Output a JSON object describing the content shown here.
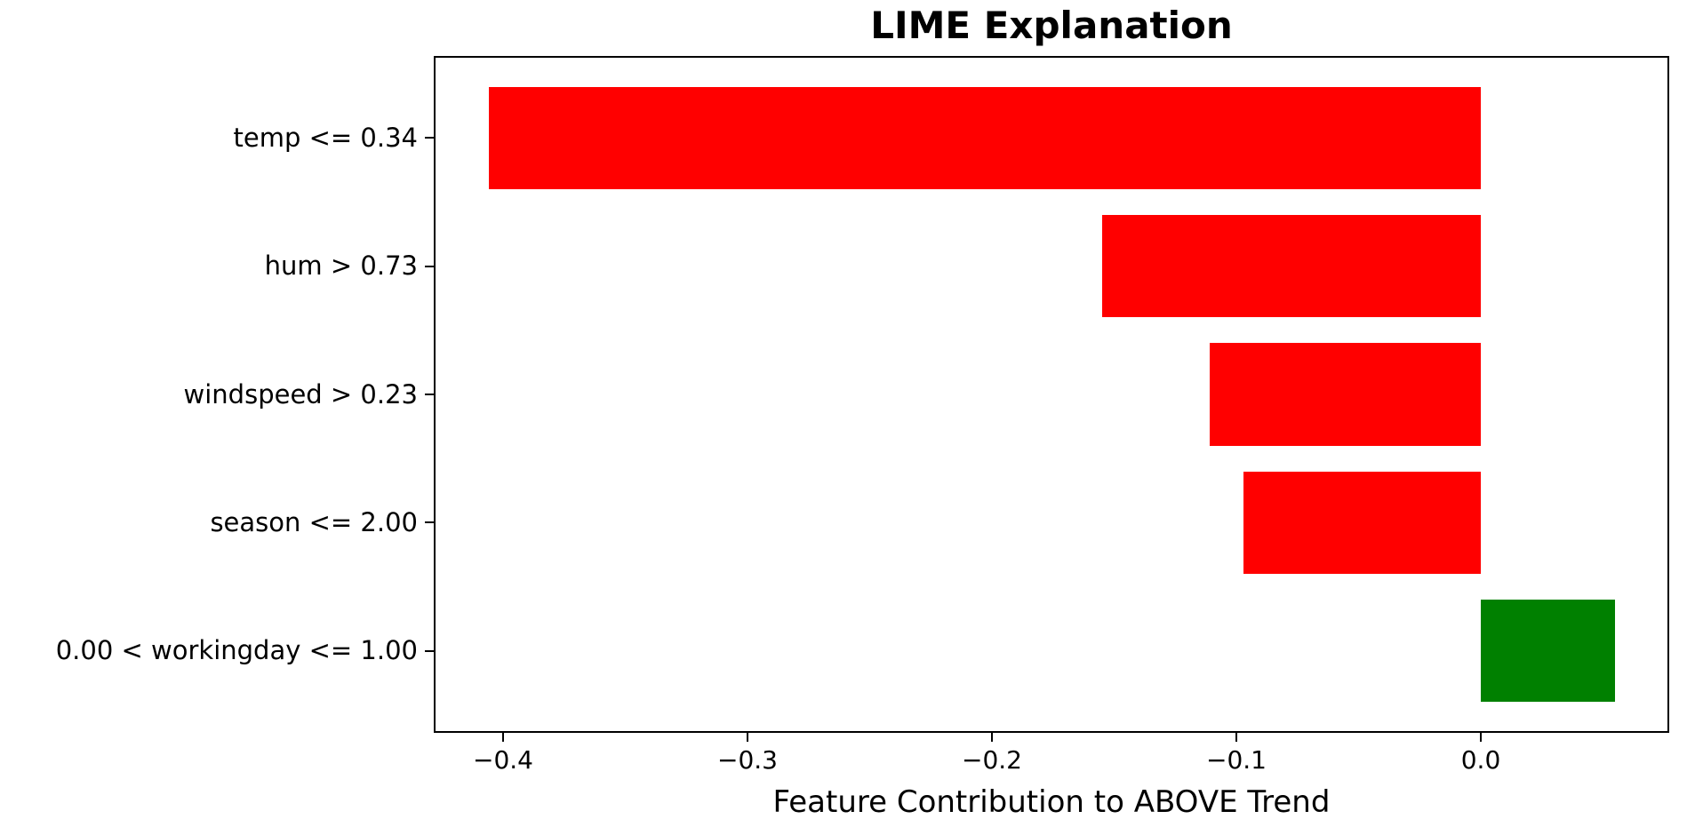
{
  "figure": {
    "background": "#ffffff",
    "text_color": "#000000",
    "spine_color": "#000000"
  },
  "chart_data": {
    "type": "bar",
    "orientation": "horizontal",
    "title": "LIME Explanation",
    "xlabel": "Feature Contribution to ABOVE Trend",
    "ylabel": "",
    "categories": [
      "temp <= 0.34",
      "hum > 0.73",
      "windspeed > 0.23",
      "season <= 2.00",
      "0.00 < workingday <= 1.00"
    ],
    "values": [
      -0.406,
      -0.155,
      -0.111,
      -0.097,
      0.055
    ],
    "bar_colors": [
      "#ff0000",
      "#ff0000",
      "#ff0000",
      "#ff0000",
      "#008000"
    ],
    "negative_color": "#ff0000",
    "positive_color": "#008000",
    "xlim": [
      -0.428,
      0.077
    ],
    "x_ticks": [
      -0.4,
      -0.3,
      -0.2,
      -0.1,
      0.0
    ],
    "x_tick_labels": [
      "−0.4",
      "−0.3",
      "−0.2",
      "−0.1",
      "0.0"
    ],
    "grid": false,
    "legend": null
  }
}
